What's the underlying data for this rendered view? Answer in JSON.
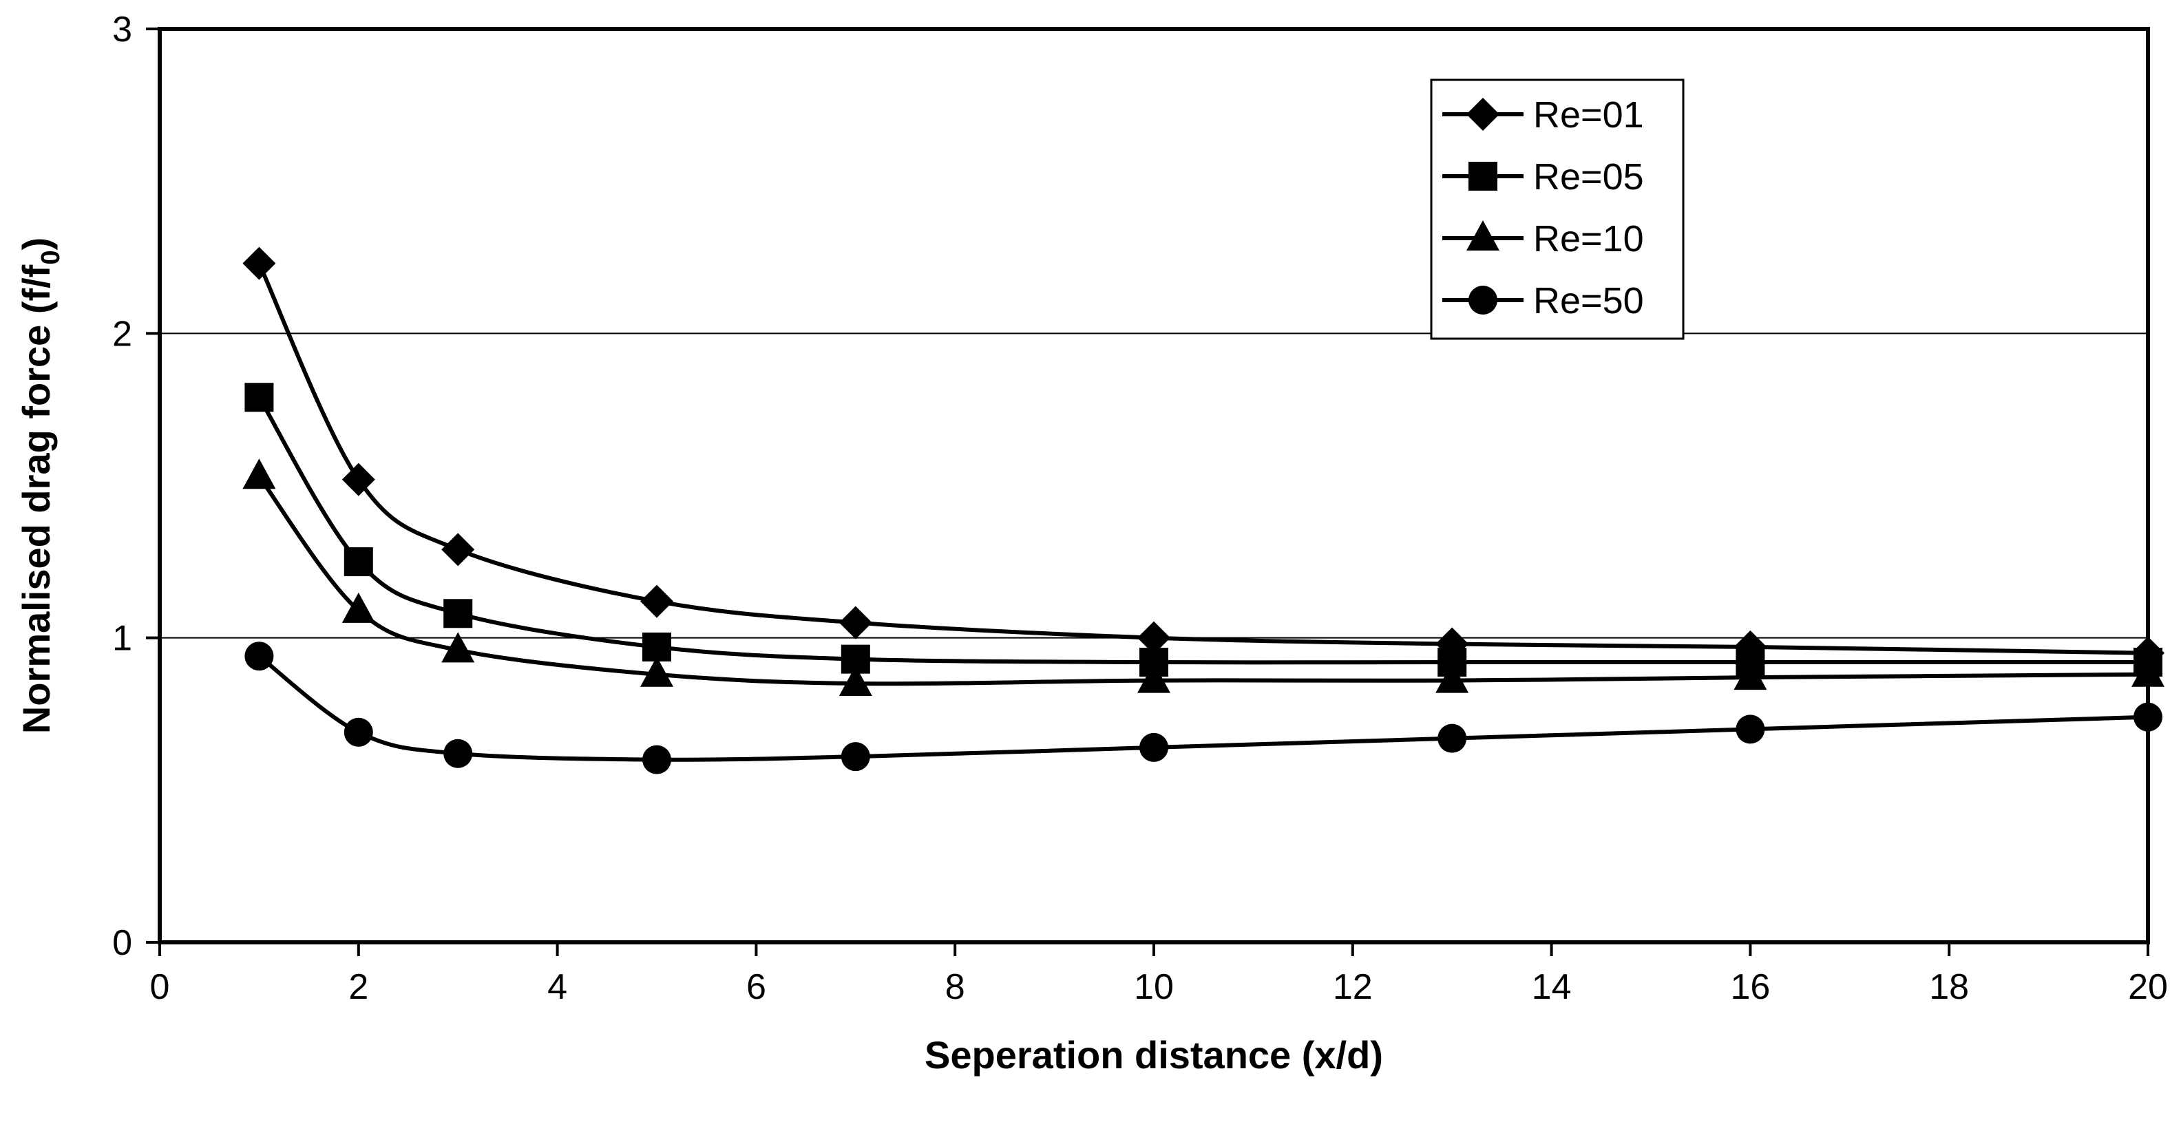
{
  "chart_data": {
    "type": "line",
    "title": "",
    "xlabel": "Seperation distance (x/d)",
    "ylabel": "Normalised drag force (f/f0)",
    "ylabel_parts": {
      "main": "Normalised drag force (f/f",
      "subscript": "0",
      "close": ")"
    },
    "xlim": [
      0,
      20
    ],
    "ylim": [
      0,
      3
    ],
    "x_ticks": [
      0,
      2,
      4,
      6,
      8,
      10,
      12,
      14,
      16,
      18,
      20
    ],
    "y_ticks": [
      0,
      1,
      2,
      3
    ],
    "x_tick_labels": [
      "0",
      "2",
      "4",
      "6",
      "8",
      "10",
      "12",
      "14",
      "16",
      "18",
      "20"
    ],
    "y_tick_labels": [
      "0",
      "1",
      "2",
      "3"
    ],
    "grid": "horizontal",
    "legend_position": "top-right",
    "x": [
      1,
      2,
      3,
      5,
      7,
      10,
      13,
      16,
      20
    ],
    "series": [
      {
        "name": "Re=01",
        "marker": "diamond",
        "values": [
          2.23,
          1.52,
          1.29,
          1.12,
          1.05,
          1.0,
          0.98,
          0.97,
          0.95
        ]
      },
      {
        "name": "Re=05",
        "marker": "square",
        "values": [
          1.79,
          1.25,
          1.08,
          0.97,
          0.93,
          0.92,
          0.92,
          0.92,
          0.92
        ]
      },
      {
        "name": "Re=10",
        "marker": "triangle",
        "values": [
          1.53,
          1.09,
          0.96,
          0.88,
          0.85,
          0.86,
          0.86,
          0.87,
          0.88
        ]
      },
      {
        "name": "Re=50",
        "marker": "circle",
        "values": [
          0.94,
          0.69,
          0.62,
          0.6,
          0.61,
          0.64,
          0.67,
          0.7,
          0.74
        ]
      }
    ]
  }
}
